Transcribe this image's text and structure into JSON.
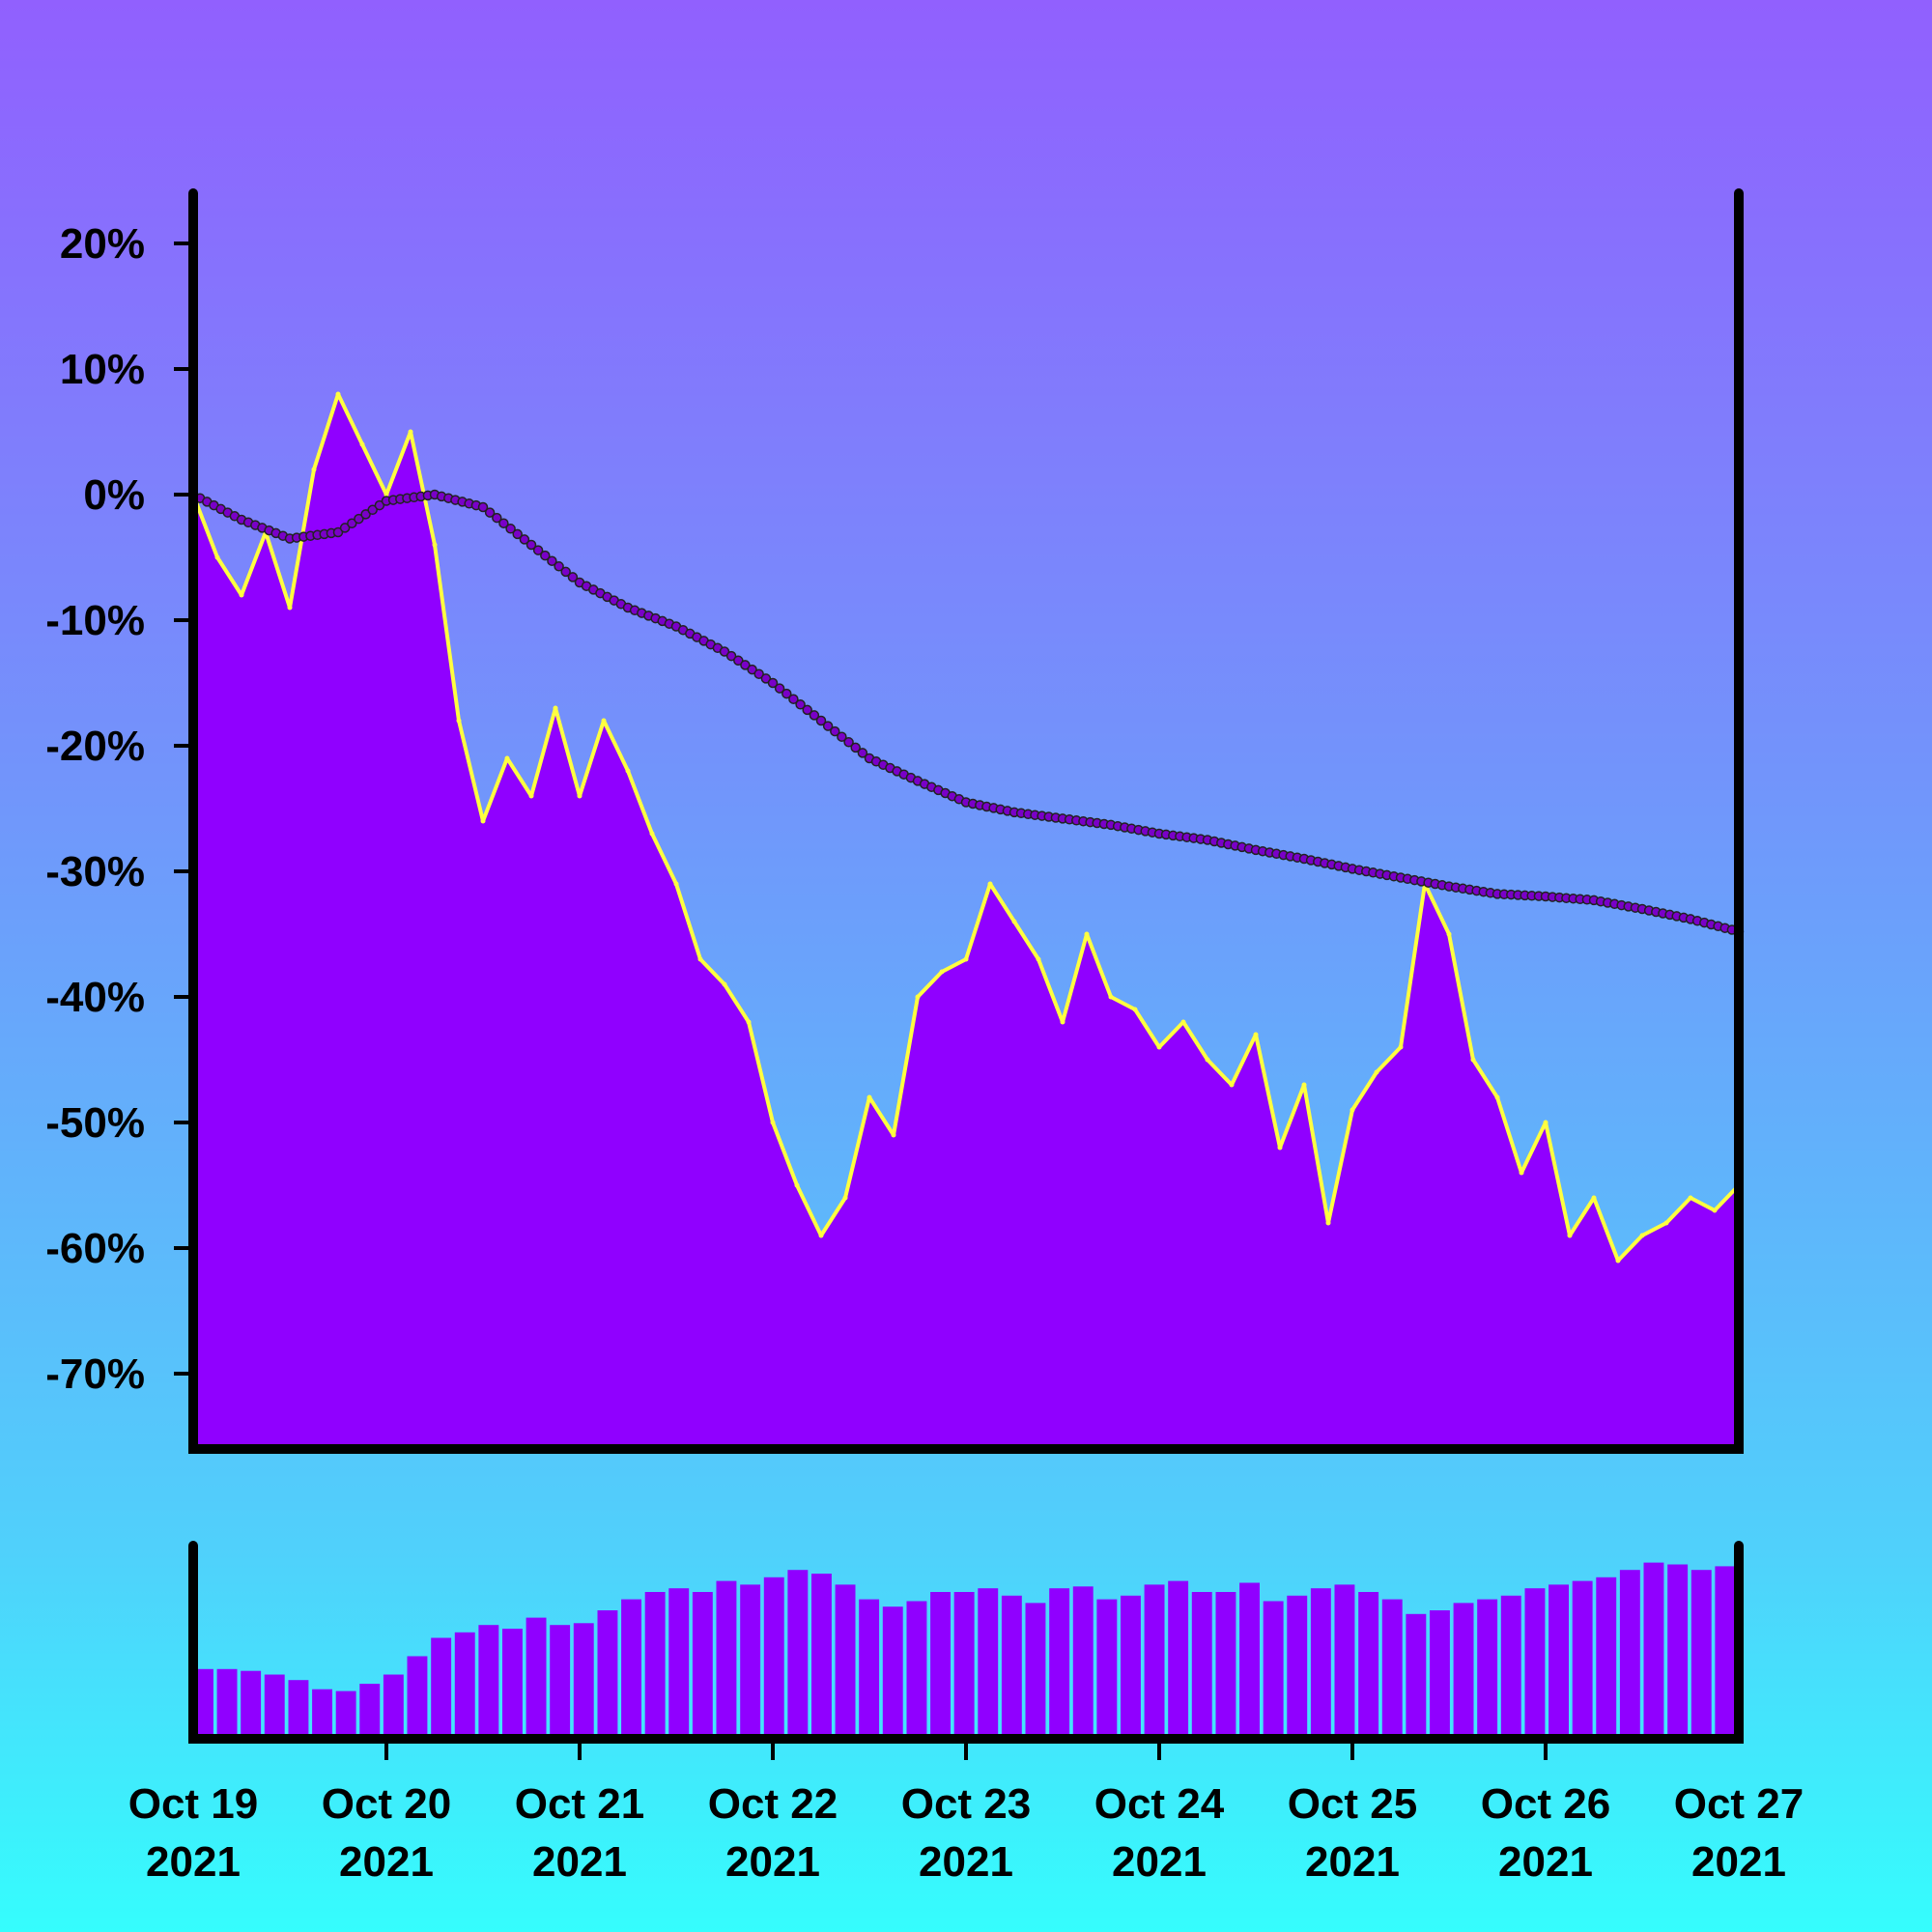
{
  "chart_data": {
    "type": "area",
    "title": "",
    "xlabel": "",
    "ylabel": "",
    "xlim": [
      "2021-10-19 00:00",
      "2021-10-27 00:00"
    ],
    "ylim": [
      -76,
      24
    ],
    "yticks": [
      20,
      10,
      0,
      -10,
      -20,
      -30,
      -40,
      -50,
      -60,
      -70
    ],
    "ytick_labels": [
      "20%",
      "10%",
      "0%",
      "-10%",
      "-20%",
      "-30%",
      "-40%",
      "-50%",
      "-60%",
      "-70%"
    ],
    "xticks": [
      {
        "month_day": "Oct 19",
        "year": "2021"
      },
      {
        "month_day": "Oct 20",
        "year": "2021"
      },
      {
        "month_day": "Oct 21",
        "year": "2021"
      },
      {
        "month_day": "Oct 22",
        "year": "2021"
      },
      {
        "month_day": "Oct 23",
        "year": "2021"
      },
      {
        "month_day": "Oct 24",
        "year": "2021"
      },
      {
        "month_day": "Oct 25",
        "year": "2021"
      },
      {
        "month_day": "Oct 26",
        "year": "2021"
      },
      {
        "month_day": "Oct 27",
        "year": "2021"
      }
    ],
    "grid": false,
    "colors": {
      "fill": "#9000ff",
      "line": "#ffff40",
      "average": "#7a00c8",
      "volume": "#9000ff",
      "axis": "#000000"
    },
    "series": [
      {
        "kind": "percent_change_area",
        "x": [
          "2021-10-19 00:00",
          "2021-10-19 03:00",
          "2021-10-19 06:00",
          "2021-10-19 09:00",
          "2021-10-19 12:00",
          "2021-10-19 15:00",
          "2021-10-19 18:00",
          "2021-10-19 21:00",
          "2021-10-20 00:00",
          "2021-10-20 03:00",
          "2021-10-20 06:00",
          "2021-10-20 09:00",
          "2021-10-20 12:00",
          "2021-10-20 15:00",
          "2021-10-20 18:00",
          "2021-10-20 21:00",
          "2021-10-21 00:00",
          "2021-10-21 03:00",
          "2021-10-21 06:00",
          "2021-10-21 09:00",
          "2021-10-21 12:00",
          "2021-10-21 15:00",
          "2021-10-21 18:00",
          "2021-10-21 21:00",
          "2021-10-22 00:00",
          "2021-10-22 03:00",
          "2021-10-22 06:00",
          "2021-10-22 09:00",
          "2021-10-22 12:00",
          "2021-10-22 15:00",
          "2021-10-22 18:00",
          "2021-10-22 21:00",
          "2021-10-23 00:00",
          "2021-10-23 03:00",
          "2021-10-23 06:00",
          "2021-10-23 09:00",
          "2021-10-23 12:00",
          "2021-10-23 15:00",
          "2021-10-23 18:00",
          "2021-10-23 21:00",
          "2021-10-24 00:00",
          "2021-10-24 03:00",
          "2021-10-24 06:00",
          "2021-10-24 09:00",
          "2021-10-24 12:00",
          "2021-10-24 15:00",
          "2021-10-24 18:00",
          "2021-10-24 21:00",
          "2021-10-25 00:00",
          "2021-10-25 03:00",
          "2021-10-25 06:00",
          "2021-10-25 09:00",
          "2021-10-25 12:00",
          "2021-10-25 15:00",
          "2021-10-25 18:00",
          "2021-10-25 21:00",
          "2021-10-26 00:00",
          "2021-10-26 03:00",
          "2021-10-26 06:00",
          "2021-10-26 09:00",
          "2021-10-26 12:00",
          "2021-10-26 15:00",
          "2021-10-26 18:00",
          "2021-10-26 21:00",
          "2021-10-27 00:00"
        ],
        "values": [
          0,
          -5,
          -8,
          -3,
          -9,
          2,
          8,
          4,
          0,
          5,
          -4,
          -18,
          -26,
          -21,
          -24,
          -17,
          -24,
          -18,
          -22,
          -27,
          -31,
          -37,
          -39,
          -42,
          -50,
          -55,
          -59,
          -56,
          -48,
          -51,
          -40,
          -38,
          -37,
          -31,
          -34,
          -37,
          -42,
          -35,
          -40,
          -41,
          -44,
          -42,
          -45,
          -47,
          -43,
          -52,
          -47,
          -58,
          -49,
          -46,
          -44,
          -31,
          -35,
          -45,
          -48,
          -54,
          -50,
          -59,
          -56,
          -61,
          -59,
          -58,
          -56,
          -57,
          -55
        ]
      },
      {
        "kind": "moving_average_dotted",
        "x": [
          "2021-10-19 00:00",
          "2021-10-19 06:00",
          "2021-10-19 12:00",
          "2021-10-19 18:00",
          "2021-10-20 00:00",
          "2021-10-20 06:00",
          "2021-10-20 12:00",
          "2021-10-20 18:00",
          "2021-10-21 00:00",
          "2021-10-21 06:00",
          "2021-10-21 12:00",
          "2021-10-21 18:00",
          "2021-10-22 00:00",
          "2021-10-22 06:00",
          "2021-10-22 12:00",
          "2021-10-22 18:00",
          "2021-10-23 00:00",
          "2021-10-23 06:00",
          "2021-10-23 12:00",
          "2021-10-23 18:00",
          "2021-10-24 00:00",
          "2021-10-24 06:00",
          "2021-10-24 12:00",
          "2021-10-24 18:00",
          "2021-10-25 00:00",
          "2021-10-25 06:00",
          "2021-10-25 12:00",
          "2021-10-25 18:00",
          "2021-10-26 00:00",
          "2021-10-26 06:00",
          "2021-10-26 12:00",
          "2021-10-26 18:00",
          "2021-10-27 00:00"
        ],
        "values": [
          0,
          -2,
          -3.5,
          -3,
          -0.5,
          0,
          -1,
          -4,
          -7,
          -9,
          -10.5,
          -12.5,
          -15,
          -18,
          -21,
          -22.8,
          -24.5,
          -25.3,
          -25.8,
          -26.3,
          -27,
          -27.5,
          -28.3,
          -29,
          -29.8,
          -30.5,
          -31.2,
          -31.8,
          -32,
          -32.3,
          -33,
          -33.8,
          -34.8
        ]
      },
      {
        "kind": "volume_bars",
        "values": [
          38,
          38,
          37,
          35,
          32,
          27,
          26,
          30,
          35,
          45,
          55,
          58,
          62,
          60,
          66,
          62,
          63,
          70,
          76,
          80,
          82,
          80,
          86,
          84,
          88,
          92,
          90,
          84,
          76,
          72,
          75,
          80,
          80,
          82,
          78,
          74,
          82,
          83,
          76,
          78,
          84,
          86,
          80,
          80,
          85,
          75,
          78,
          82,
          84,
          80,
          76,
          68,
          70,
          74,
          76,
          78,
          82,
          84,
          86,
          88,
          92,
          96,
          95,
          92,
          94
        ]
      }
    ]
  }
}
